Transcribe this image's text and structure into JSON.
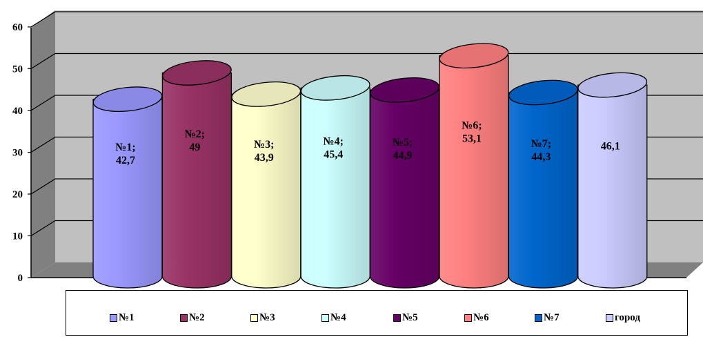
{
  "chart_data": {
    "type": "bar",
    "style": "3d-cylinder",
    "categories": [
      "№1",
      "№2",
      "№3",
      "№4",
      "№5",
      "№6",
      "№7",
      "город"
    ],
    "values": [
      42.7,
      49,
      43.9,
      45.4,
      44.9,
      53.1,
      44.3,
      46.1
    ],
    "data_labels": [
      "№1;\n42,7",
      "№2;\n49",
      "№3;\n43,9",
      "№4;\n45,4",
      "№5;\n44,9",
      "№6;\n53,1",
      "№7;\n44,3",
      "46,1"
    ],
    "colors": [
      "#9999ff",
      "#993366",
      "#ffffcc",
      "#ccffff",
      "#660066",
      "#ff8080",
      "#0066cc",
      "#ccccff"
    ],
    "title": "",
    "xlabel": "",
    "ylabel": "",
    "ylim": [
      0,
      60
    ],
    "yticks": [
      "0",
      "10",
      "20",
      "30",
      "40",
      "50",
      "60"
    ],
    "grid": true,
    "legend_position": "bottom",
    "legend": [
      "№1",
      "№2",
      "№3",
      "№4",
      "№5",
      "№6",
      "№7",
      "город"
    ]
  }
}
